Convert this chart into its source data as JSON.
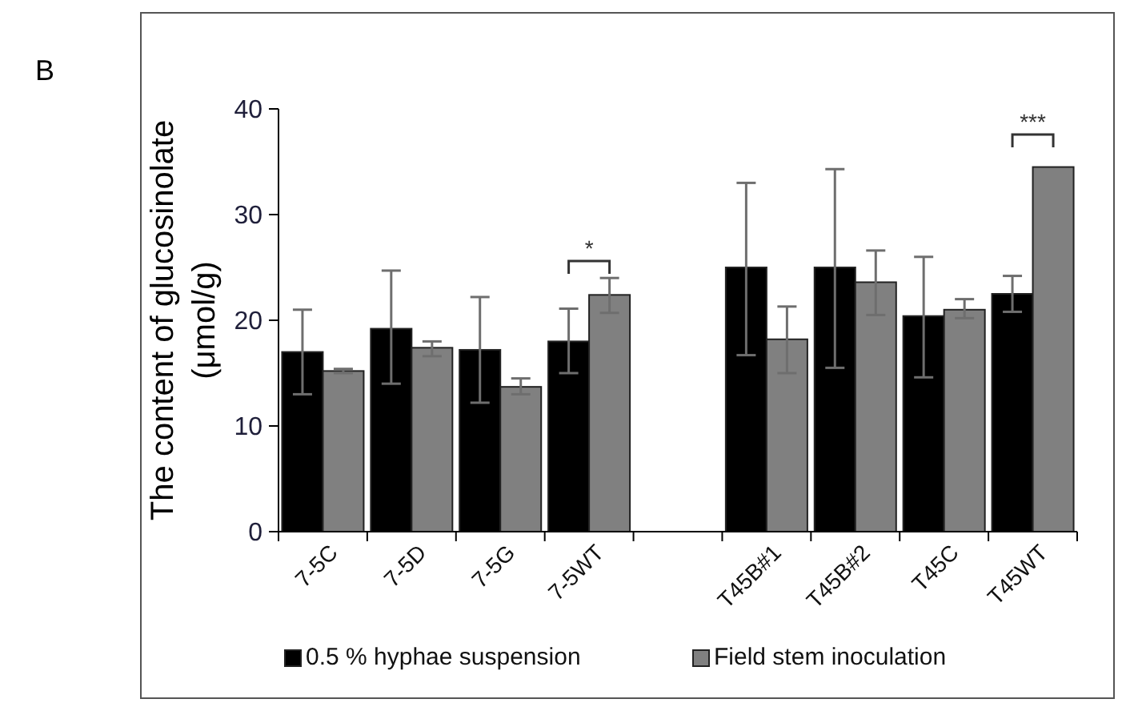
{
  "chart_data": {
    "type": "bar",
    "ylabel": "The content of glucosinolate (μmol/g)",
    "categories": [
      "7-5C",
      "7-5D",
      "7-5G",
      "7-5WT",
      null,
      "T45B#1",
      "T45B#2",
      "T45C",
      "T45WT"
    ],
    "series": [
      {
        "name": "0.5 % hyphae suspension",
        "color": "#000000",
        "values": [
          17,
          19.2,
          17.2,
          18,
          null,
          25,
          25,
          20.4,
          22.5
        ],
        "errors": [
          [
            13,
            21
          ],
          [
            14,
            24.7
          ],
          [
            12.2,
            22.2
          ],
          [
            15,
            21.1
          ],
          null,
          [
            16.7,
            33
          ],
          [
            15.5,
            34.3
          ],
          [
            14.6,
            26
          ],
          [
            20.8,
            24.2
          ]
        ]
      },
      {
        "name": "Field stem inoculation",
        "color": "#808080",
        "values": [
          15.2,
          17.4,
          13.7,
          22.4,
          null,
          18.2,
          23.6,
          21,
          34.5
        ],
        "errors": [
          [
            15,
            15.4
          ],
          [
            16.6,
            18
          ],
          [
            13,
            14.5
          ],
          [
            20.7,
            24
          ],
          null,
          [
            15,
            21.3
          ],
          [
            20.5,
            26.6
          ],
          [
            20.2,
            22
          ],
          null
        ]
      }
    ],
    "ylim": [
      0,
      40
    ],
    "yticks": [
      0,
      10,
      20,
      30,
      40
    ],
    "grid": false,
    "legend": "bottom",
    "annotations": [
      "B",
      "*",
      "***"
    ]
  }
}
